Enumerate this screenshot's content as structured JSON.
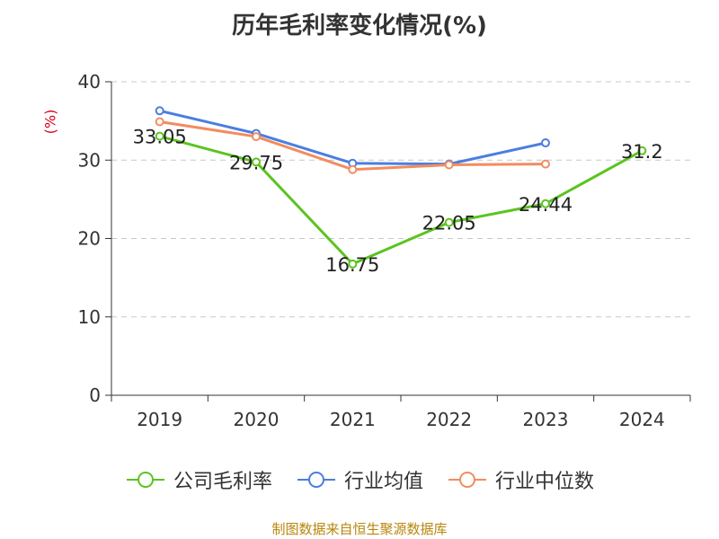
{
  "chart_data": {
    "type": "line",
    "title": "历年毛利率变化情况(%)",
    "ylabel": "(%)",
    "xlabel": "",
    "categories": [
      "2019",
      "2020",
      "2021",
      "2022",
      "2023",
      "2024"
    ],
    "ylim": [
      0,
      40
    ],
    "yticks": [
      0,
      10,
      20,
      30,
      40
    ],
    "grid": true,
    "legend_position": "bottom",
    "series": [
      {
        "name": "公司毛利率",
        "color": "#5bc41f",
        "values": [
          33.05,
          29.75,
          16.75,
          22.05,
          24.44,
          31.2
        ],
        "labels": [
          "33.05",
          "29.75",
          "16.75",
          "22.05",
          "24.44",
          "31.2"
        ]
      },
      {
        "name": "行业均值",
        "color": "#4a7ee0",
        "values": [
          36.3,
          33.4,
          29.6,
          29.5,
          32.2,
          null
        ]
      },
      {
        "name": "行业中位数",
        "color": "#f28c5e",
        "values": [
          34.9,
          33.0,
          28.8,
          29.4,
          29.5,
          null
        ]
      }
    ]
  },
  "footer": {
    "source": "制图数据来自恒生聚源数据库"
  }
}
